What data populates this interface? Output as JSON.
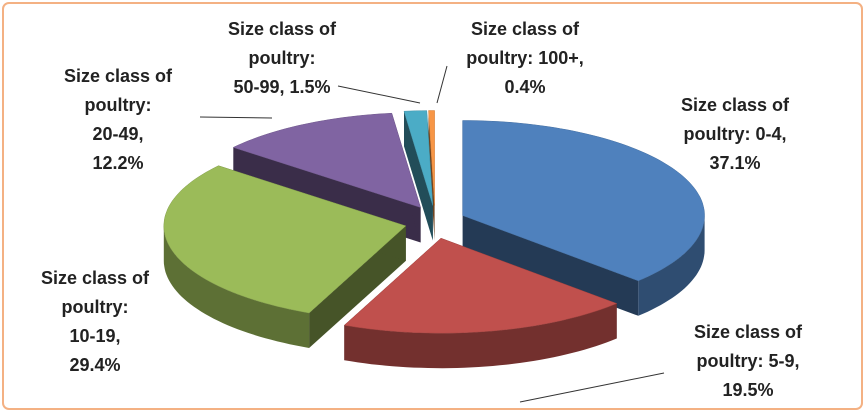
{
  "chart_data": {
    "type": "pie",
    "style": "3d-exploded",
    "values": [
      37.1,
      19.5,
      29.4,
      12.2,
      1.5,
      0.4
    ],
    "value_labels": [
      "Size class of poultry: 0-4, 37.1%",
      "Size class of poultry: 5-9, 19.5%",
      "Size class of poultry: 10-19, 29.4%",
      "Size class of poultry: 20-49, 12.2%",
      "Size class of poultry: 50-99, 1.5%",
      "Size class of poultry: 100+, 0.4%"
    ],
    "colors": [
      "#4f81bd",
      "#c0504d",
      "#9bbb59",
      "#8064a2",
      "#4bacc6",
      "#f79646"
    ]
  }
}
